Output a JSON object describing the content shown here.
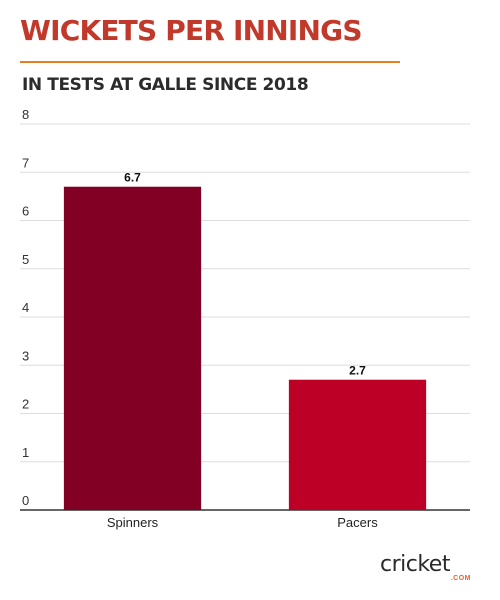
{
  "header": {
    "title": "WICKETS PER INNINGS",
    "subtitle": "IN TESTS AT GALLE SINCE 2018"
  },
  "brand": {
    "word": "cricket",
    "suffix": ".COM",
    "accent": "#e8642c"
  },
  "colors": {
    "title": "#c0392b",
    "rule": "#e67e22"
  },
  "chart_data": {
    "type": "bar",
    "title": "WICKETS PER INNINGS",
    "subtitle": "IN TESTS AT GALLE SINCE 2018",
    "categories": [
      "Spinners",
      "Pacers"
    ],
    "values": [
      6.7,
      2.7
    ],
    "data_labels": [
      "6.7",
      "2.7"
    ],
    "bar_colors": [
      "#820024",
      "#bd0026"
    ],
    "ylim": [
      0,
      8
    ],
    "yticks": [
      0,
      1,
      2,
      3,
      4,
      5,
      6,
      7,
      8
    ],
    "xlabel": "",
    "ylabel": "",
    "grid": true,
    "legend": "none"
  }
}
